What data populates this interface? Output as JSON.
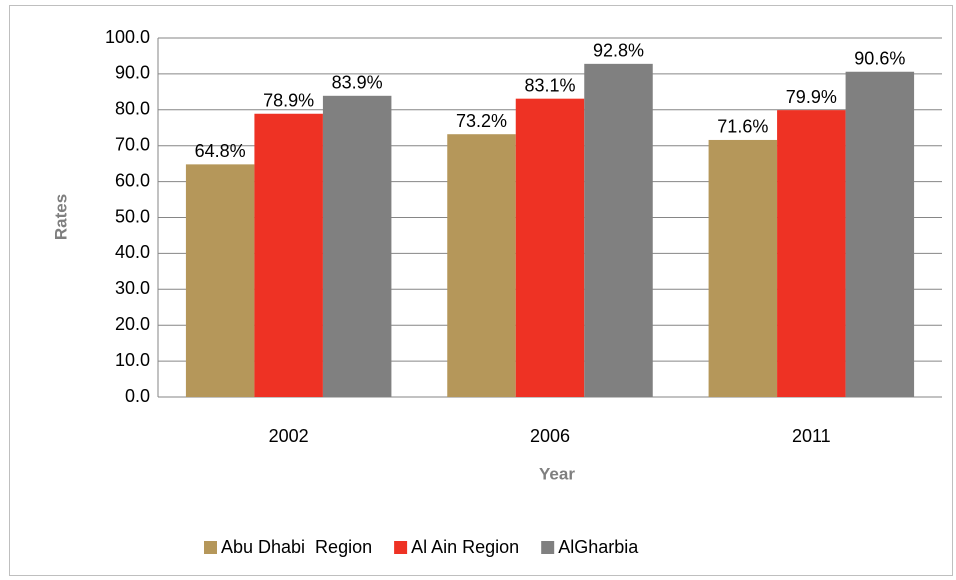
{
  "chart_data": {
    "type": "bar",
    "categories": [
      "2002",
      "2006",
      "2011"
    ],
    "series": [
      {
        "name": "Abu Dhabi  Region",
        "color": "#b5975a",
        "values": [
          64.8,
          73.2,
          71.6
        ],
        "value_labels": [
          "64.8%",
          "73.2%",
          "71.6%"
        ]
      },
      {
        "name": "Al Ain Region",
        "color": "#ee3224",
        "values": [
          78.9,
          83.1,
          79.9
        ],
        "value_labels": [
          "78.9%",
          "83.1%",
          "79.9%"
        ]
      },
      {
        "name": "AlGharbia",
        "color": "#808080",
        "values": [
          83.9,
          92.8,
          90.6
        ],
        "value_labels": [
          "83.9%",
          "92.8%",
          "90.6%"
        ]
      }
    ],
    "y_label": "Rates",
    "x_label": "Year",
    "ylim": [
      0,
      100
    ],
    "yticks": [
      {
        "value": 0,
        "label": "0.0"
      },
      {
        "value": 10,
        "label": "10.0"
      },
      {
        "value": 20,
        "label": "20.0"
      },
      {
        "value": 30,
        "label": "30.0"
      },
      {
        "value": 40,
        "label": "40.0"
      },
      {
        "value": 50,
        "label": "50.0"
      },
      {
        "value": 60,
        "label": "60.0"
      },
      {
        "value": 70,
        "label": "70.0"
      },
      {
        "value": 80,
        "label": "80.0"
      },
      {
        "value": 90,
        "label": "90.0"
      },
      {
        "value": 100,
        "label": "100.0"
      }
    ],
    "grid": true,
    "legend": "bottom"
  }
}
